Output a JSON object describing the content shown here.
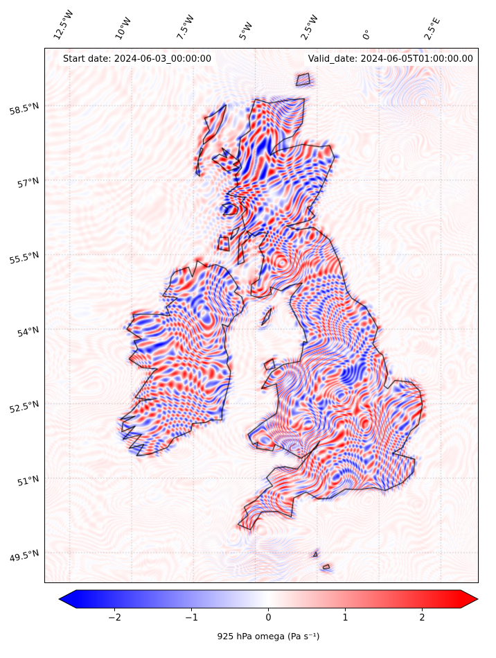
{
  "titles": {
    "start": "Start date: 2024-06-03_00:00:00",
    "valid": "Valid_date: 2024-06-05T01:00:00.00"
  },
  "axes": {
    "lon_range": [
      -13.5,
      4.0
    ],
    "lat_range": [
      48.9,
      59.65
    ],
    "lon_ticks": [
      {
        "value": -12.5,
        "label": "12.5°W"
      },
      {
        "value": -10,
        "label": "10°W"
      },
      {
        "value": -7.5,
        "label": "7.5°W"
      },
      {
        "value": -5,
        "label": "5°W"
      },
      {
        "value": -2.5,
        "label": "2.5°W"
      },
      {
        "value": 0,
        "label": "0°"
      },
      {
        "value": 2.5,
        "label": "2.5°E"
      }
    ],
    "lat_ticks": [
      {
        "value": 58.5,
        "label": "58.5°N"
      },
      {
        "value": 57,
        "label": "57°N"
      },
      {
        "value": 55.5,
        "label": "55.5°N"
      },
      {
        "value": 54,
        "label": "54°N"
      },
      {
        "value": 52.5,
        "label": "52.5°N"
      },
      {
        "value": 51,
        "label": "51°N"
      },
      {
        "value": 49.5,
        "label": "49.5°N"
      }
    ]
  },
  "colorbar": {
    "label": "925 hPa omega (Pa s⁻¹)",
    "vmin": -2.5,
    "vmax": 2.5,
    "extend": "both",
    "cmap": [
      "#0000ff",
      "#ffffff",
      "#ff0000"
    ],
    "ticks": [
      {
        "value": -2,
        "label": "−2"
      },
      {
        "value": -1,
        "label": "−1"
      },
      {
        "value": 0,
        "label": "0"
      },
      {
        "value": 1,
        "label": "1"
      },
      {
        "value": 2,
        "label": "2"
      }
    ]
  },
  "chart_data": {
    "type": "heatmap",
    "field": "925 hPa omega",
    "units": "Pa s⁻¹",
    "colormap": "bwr",
    "vmin": -2.5,
    "vmax": 2.5,
    "colorbar_ticks": [
      -2,
      -1,
      0,
      1,
      2
    ],
    "extent": {
      "lon": [
        -13.5,
        4.0
      ],
      "lat": [
        48.9,
        59.65
      ]
    },
    "summary": "Small-scale alternating red/blue omega wave bands over Great Britain and Ireland, strongest over western Scotland; pale pink background over sea."
  },
  "map": {
    "coastlines": [
      {
        "name": "great-britain",
        "points": [
          [
            -5.71,
            50.07
          ],
          [
            -5.2,
            49.96
          ],
          [
            -4.75,
            50.32
          ],
          [
            -4.1,
            50.33
          ],
          [
            -3.55,
            50.22
          ],
          [
            -3.45,
            50.6
          ],
          [
            -2.95,
            50.72
          ],
          [
            -2.45,
            50.58
          ],
          [
            -1.95,
            50.6
          ],
          [
            -1.35,
            50.78
          ],
          [
            -0.8,
            50.77
          ],
          [
            -0.2,
            50.81
          ],
          [
            0.25,
            50.75
          ],
          [
            0.95,
            50.91
          ],
          [
            1.4,
            51.13
          ],
          [
            1.45,
            51.38
          ],
          [
            0.95,
            51.45
          ],
          [
            0.55,
            51.5
          ],
          [
            0.95,
            51.62
          ],
          [
            1.28,
            51.95
          ],
          [
            1.6,
            52.08
          ],
          [
            1.75,
            52.48
          ],
          [
            1.65,
            52.75
          ],
          [
            1.3,
            52.93
          ],
          [
            0.65,
            52.97
          ],
          [
            0.35,
            52.8
          ],
          [
            0.2,
            52.86
          ],
          [
            0.35,
            53.1
          ],
          [
            0.15,
            53.48
          ],
          [
            0.0,
            53.53
          ],
          [
            -0.25,
            53.7
          ],
          [
            -0.05,
            54.02
          ],
          [
            -0.2,
            54.16
          ],
          [
            -0.55,
            54.45
          ],
          [
            -1.1,
            54.62
          ],
          [
            -1.3,
            54.77
          ],
          [
            -1.45,
            55.05
          ],
          [
            -1.6,
            55.35
          ],
          [
            -2.0,
            55.8
          ],
          [
            -2.65,
            56.05
          ],
          [
            -3.3,
            56.0
          ],
          [
            -3.75,
            56.08
          ],
          [
            -3.35,
            56.12
          ],
          [
            -2.8,
            56.19
          ],
          [
            -2.6,
            56.28
          ],
          [
            -2.9,
            56.45
          ],
          [
            -2.75,
            56.48
          ],
          [
            -2.45,
            56.72
          ],
          [
            -2.1,
            57.1
          ],
          [
            -1.8,
            57.45
          ],
          [
            -2.0,
            57.7
          ],
          [
            -2.4,
            57.67
          ],
          [
            -3.1,
            57.72
          ],
          [
            -3.55,
            57.66
          ],
          [
            -4.05,
            57.6
          ],
          [
            -4.4,
            57.5
          ],
          [
            -4.2,
            57.68
          ],
          [
            -3.85,
            57.82
          ],
          [
            -3.5,
            57.88
          ],
          [
            -3.1,
            58.15
          ],
          [
            -3.05,
            58.45
          ],
          [
            -3.02,
            58.64
          ],
          [
            -3.55,
            58.62
          ],
          [
            -4.45,
            58.55
          ],
          [
            -5.0,
            58.63
          ],
          [
            -5.25,
            58.25
          ],
          [
            -5.2,
            58.0
          ],
          [
            -5.6,
            57.85
          ],
          [
            -5.7,
            57.45
          ],
          [
            -5.55,
            57.25
          ],
          [
            -5.8,
            57.1
          ],
          [
            -5.7,
            56.9
          ],
          [
            -6.15,
            56.72
          ],
          [
            -5.85,
            56.68
          ],
          [
            -5.4,
            56.65
          ],
          [
            -5.6,
            56.53
          ],
          [
            -5.35,
            56.42
          ],
          [
            -5.55,
            56.3
          ],
          [
            -5.4,
            56.0
          ],
          [
            -5.65,
            55.85
          ],
          [
            -5.7,
            55.3
          ],
          [
            -5.45,
            55.35
          ],
          [
            -5.55,
            55.7
          ],
          [
            -5.2,
            55.85
          ],
          [
            -5.35,
            55.98
          ],
          [
            -5.0,
            55.87
          ],
          [
            -4.85,
            55.95
          ],
          [
            -4.5,
            55.93
          ],
          [
            -4.85,
            55.65
          ],
          [
            -4.65,
            55.45
          ],
          [
            -4.85,
            55.0
          ],
          [
            -5.15,
            54.9
          ],
          [
            -5.18,
            54.68
          ],
          [
            -4.85,
            54.63
          ],
          [
            -4.35,
            54.7
          ],
          [
            -4.4,
            54.85
          ],
          [
            -3.95,
            54.77
          ],
          [
            -3.6,
            54.88
          ],
          [
            -3.1,
            54.93
          ],
          [
            -3.55,
            54.65
          ],
          [
            -3.6,
            54.5
          ],
          [
            -3.2,
            54.1
          ],
          [
            -3.05,
            54.0
          ],
          [
            -2.9,
            53.73
          ],
          [
            -3.05,
            53.75
          ],
          [
            -3.1,
            53.55
          ],
          [
            -3.2,
            53.35
          ],
          [
            -3.85,
            53.29
          ],
          [
            -4.35,
            53.13
          ],
          [
            -4.75,
            52.8
          ],
          [
            -4.15,
            52.9
          ],
          [
            -4.05,
            52.55
          ],
          [
            -4.15,
            52.3
          ],
          [
            -4.7,
            52.12
          ],
          [
            -5.3,
            51.88
          ],
          [
            -5.1,
            51.68
          ],
          [
            -4.9,
            51.72
          ],
          [
            -4.95,
            51.6
          ],
          [
            -4.3,
            51.55
          ],
          [
            -4.2,
            51.68
          ],
          [
            -3.75,
            51.57
          ],
          [
            -3.15,
            51.4
          ],
          [
            -2.55,
            51.6
          ],
          [
            -2.4,
            51.74
          ],
          [
            -2.8,
            51.48
          ],
          [
            -3.3,
            51.18
          ],
          [
            -3.8,
            51.23
          ],
          [
            -4.2,
            51.2
          ],
          [
            -4.55,
            51.01
          ],
          [
            -4.3,
            50.84
          ],
          [
            -4.55,
            50.78
          ],
          [
            -5.0,
            50.55
          ],
          [
            -5.45,
            50.42
          ],
          [
            -5.3,
            50.25
          ],
          [
            -5.71,
            50.07
          ]
        ]
      },
      {
        "name": "ireland",
        "points": [
          [
            -7.35,
            55.38
          ],
          [
            -6.95,
            55.25
          ],
          [
            -6.6,
            55.3
          ],
          [
            -6.2,
            55.22
          ],
          [
            -5.95,
            55.05
          ],
          [
            -5.7,
            54.85
          ],
          [
            -5.85,
            54.75
          ],
          [
            -5.55,
            54.65
          ],
          [
            -5.45,
            54.48
          ],
          [
            -5.55,
            54.35
          ],
          [
            -5.85,
            54.25
          ],
          [
            -6.1,
            54.05
          ],
          [
            -6.35,
            54.1
          ],
          [
            -6.2,
            53.9
          ],
          [
            -6.25,
            53.65
          ],
          [
            -6.1,
            53.45
          ],
          [
            -6.15,
            53.3
          ],
          [
            -6.0,
            53.15
          ],
          [
            -6.05,
            52.95
          ],
          [
            -6.2,
            52.65
          ],
          [
            -6.35,
            52.35
          ],
          [
            -6.35,
            52.17
          ],
          [
            -6.8,
            52.17
          ],
          [
            -7.0,
            52.12
          ],
          [
            -7.55,
            52.1
          ],
          [
            -7.6,
            51.95
          ],
          [
            -8.3,
            51.8
          ],
          [
            -8.55,
            51.62
          ],
          [
            -9.3,
            51.48
          ],
          [
            -9.8,
            51.45
          ],
          [
            -9.5,
            51.68
          ],
          [
            -10.1,
            51.6
          ],
          [
            -9.6,
            51.88
          ],
          [
            -10.35,
            51.78
          ],
          [
            -9.85,
            52.05
          ],
          [
            -10.4,
            51.93
          ],
          [
            -10.35,
            52.12
          ],
          [
            -9.85,
            52.25
          ],
          [
            -10.45,
            52.18
          ],
          [
            -10.0,
            52.35
          ],
          [
            -9.65,
            52.55
          ],
          [
            -9.0,
            52.6
          ],
          [
            -9.35,
            52.58
          ],
          [
            -9.85,
            52.62
          ],
          [
            -9.4,
            52.95
          ],
          [
            -9.1,
            53.15
          ],
          [
            -8.95,
            53.2
          ],
          [
            -9.55,
            53.22
          ],
          [
            -10.1,
            53.4
          ],
          [
            -9.75,
            53.6
          ],
          [
            -9.9,
            53.77
          ],
          [
            -9.6,
            53.8
          ],
          [
            -10.2,
            54.0
          ],
          [
            -9.9,
            54.2
          ],
          [
            -9.95,
            54.3
          ],
          [
            -8.95,
            54.3
          ],
          [
            -8.45,
            54.27
          ],
          [
            -8.6,
            54.45
          ],
          [
            -8.15,
            54.63
          ],
          [
            -8.75,
            54.67
          ],
          [
            -8.45,
            54.88
          ],
          [
            -8.4,
            55.05
          ],
          [
            -8.25,
            55.15
          ],
          [
            -7.7,
            55.25
          ],
          [
            -7.55,
            55.05
          ],
          [
            -7.4,
            55.25
          ],
          [
            -7.35,
            55.38
          ]
        ]
      },
      {
        "name": "isle-of-man",
        "points": [
          [
            -4.75,
            54.07
          ],
          [
            -4.45,
            54.22
          ],
          [
            -4.35,
            54.42
          ],
          [
            -4.55,
            54.3
          ],
          [
            -4.75,
            54.07
          ]
        ]
      },
      {
        "name": "lewis-harris",
        "points": [
          [
            -6.17,
            58.52
          ],
          [
            -6.35,
            58.18
          ],
          [
            -6.6,
            57.92
          ],
          [
            -7.1,
            57.72
          ],
          [
            -7.1,
            57.82
          ],
          [
            -6.85,
            58.0
          ],
          [
            -7.05,
            58.25
          ],
          [
            -6.75,
            58.3
          ],
          [
            -6.17,
            58.52
          ]
        ]
      },
      {
        "name": "uists",
        "points": [
          [
            -7.2,
            57.65
          ],
          [
            -7.3,
            57.4
          ],
          [
            -7.4,
            57.15
          ],
          [
            -7.25,
            57.08
          ],
          [
            -7.32,
            57.4
          ],
          [
            -7.12,
            57.63
          ],
          [
            -7.2,
            57.65
          ]
        ]
      },
      {
        "name": "skye",
        "points": [
          [
            -6.15,
            57.18
          ],
          [
            -5.65,
            57.25
          ],
          [
            -5.9,
            57.32
          ],
          [
            -5.65,
            57.38
          ],
          [
            -6.35,
            57.65
          ],
          [
            -6.15,
            57.45
          ],
          [
            -6.45,
            57.52
          ],
          [
            -6.75,
            57.42
          ],
          [
            -6.45,
            57.32
          ],
          [
            -6.15,
            57.18
          ]
        ]
      },
      {
        "name": "mull",
        "points": [
          [
            -6.3,
            56.3
          ],
          [
            -5.75,
            56.32
          ],
          [
            -5.7,
            56.45
          ],
          [
            -6.0,
            56.53
          ],
          [
            -6.35,
            56.5
          ],
          [
            -6.1,
            56.42
          ],
          [
            -6.3,
            56.3
          ]
        ]
      },
      {
        "name": "islay",
        "points": [
          [
            -6.5,
            55.62
          ],
          [
            -6.05,
            55.57
          ],
          [
            -6.1,
            55.85
          ],
          [
            -6.45,
            55.85
          ],
          [
            -6.5,
            55.62
          ]
        ]
      },
      {
        "name": "jura",
        "points": [
          [
            -6.0,
            55.8
          ],
          [
            -5.75,
            55.92
          ],
          [
            -5.65,
            56.05
          ],
          [
            -5.9,
            56.0
          ],
          [
            -6.0,
            55.8
          ]
        ]
      },
      {
        "name": "anglesey",
        "points": [
          [
            -4.55,
            53.18
          ],
          [
            -4.2,
            53.22
          ],
          [
            -4.3,
            53.4
          ],
          [
            -4.65,
            53.3
          ],
          [
            -4.55,
            53.18
          ]
        ]
      },
      {
        "name": "orkney",
        "points": [
          [
            -3.35,
            58.9
          ],
          [
            -2.8,
            58.95
          ],
          [
            -2.85,
            59.15
          ],
          [
            -3.25,
            59.1
          ],
          [
            -3.35,
            58.9
          ]
        ]
      },
      {
        "name": "jersey",
        "points": [
          [
            -2.25,
            49.17
          ],
          [
            -2.0,
            49.19
          ],
          [
            -2.05,
            49.26
          ],
          [
            -2.25,
            49.22
          ],
          [
            -2.25,
            49.17
          ]
        ]
      },
      {
        "name": "guernsey",
        "points": [
          [
            -2.65,
            49.42
          ],
          [
            -2.5,
            49.43
          ],
          [
            -2.55,
            49.51
          ],
          [
            -2.65,
            49.42
          ]
        ]
      }
    ]
  }
}
